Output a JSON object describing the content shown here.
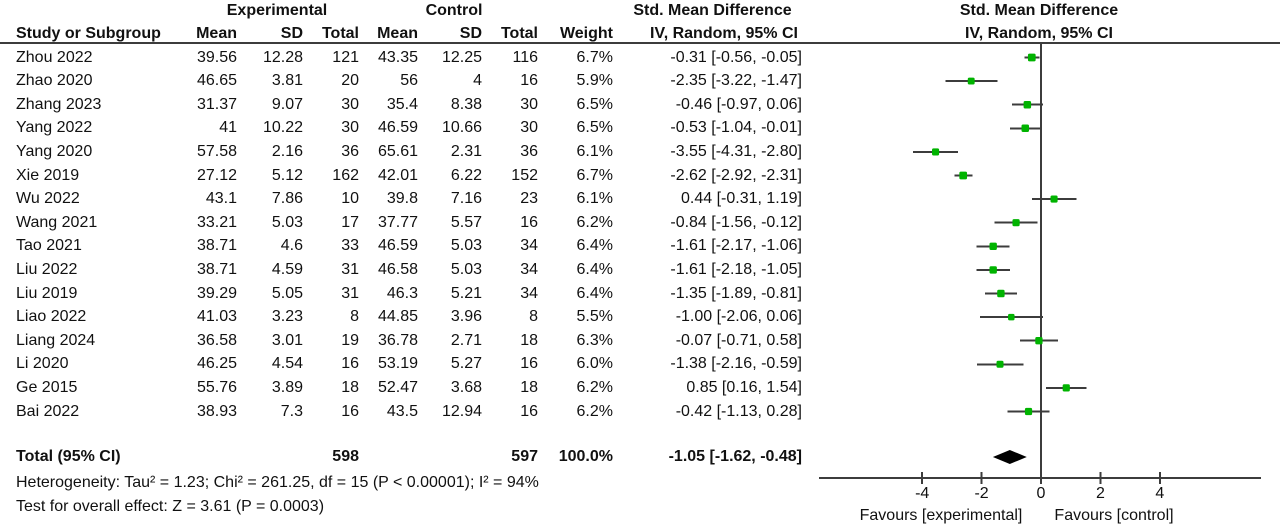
{
  "colors": {
    "marker_green": "#00b300",
    "line_dark": "#3c3c3c",
    "text": "#111111",
    "diamond": "#000000"
  },
  "group_headers": {
    "experimental": "Experimental",
    "control": "Control",
    "smd_text_col": "Std. Mean Difference",
    "smd_plot_col": "Std. Mean Difference"
  },
  "column_headers": {
    "study": "Study or Subgroup",
    "mean_exp": "Mean",
    "sd_exp": "SD",
    "total_exp": "Total",
    "mean_ctrl": "Mean",
    "sd_ctrl": "SD",
    "total_ctrl": "Total",
    "weight": "Weight",
    "iv_text_col": "IV, Random, 95% CI",
    "iv_plot_col": "IV, Random, 95% CI"
  },
  "chart_data": {
    "type": "forest",
    "effect_measure": "Std. Mean Difference (IV, Random, 95% CI)",
    "x_axis": {
      "ticks": [
        -4,
        -2,
        0,
        2,
        4
      ],
      "range": [
        -7.5,
        7.5
      ],
      "favours_left": "Favours [experimental]",
      "favours_right": "Favours [control]"
    },
    "studies": [
      {
        "name": "Zhou 2022",
        "exp_mean": "39.56",
        "exp_sd": "12.28",
        "exp_total": "121",
        "c_mean": "43.35",
        "c_sd": "12.25",
        "c_total": "116",
        "weight": "6.7%",
        "ci": "-0.31 [-0.56, -0.05]",
        "est": -0.31,
        "lo": -0.56,
        "hi": -0.05,
        "w": 6.7
      },
      {
        "name": "Zhao 2020",
        "exp_mean": "46.65",
        "exp_sd": "3.81",
        "exp_total": "20",
        "c_mean": "56",
        "c_sd": "4",
        "c_total": "16",
        "weight": "5.9%",
        "ci": "-2.35 [-3.22, -1.47]",
        "est": -2.35,
        "lo": -3.22,
        "hi": -1.47,
        "w": 5.9
      },
      {
        "name": "Zhang 2023",
        "exp_mean": "31.37",
        "exp_sd": "9.07",
        "exp_total": "30",
        "c_mean": "35.4",
        "c_sd": "8.38",
        "c_total": "30",
        "weight": "6.5%",
        "ci": "-0.46 [-0.97, 0.06]",
        "est": -0.46,
        "lo": -0.97,
        "hi": 0.06,
        "w": 6.5
      },
      {
        "name": "Yang 2022",
        "exp_mean": "41",
        "exp_sd": "10.22",
        "exp_total": "30",
        "c_mean": "46.59",
        "c_sd": "10.66",
        "c_total": "30",
        "weight": "6.5%",
        "ci": "-0.53 [-1.04, -0.01]",
        "est": -0.53,
        "lo": -1.04,
        "hi": -0.01,
        "w": 6.5
      },
      {
        "name": "Yang 2020",
        "exp_mean": "57.58",
        "exp_sd": "2.16",
        "exp_total": "36",
        "c_mean": "65.61",
        "c_sd": "2.31",
        "c_total": "36",
        "weight": "6.1%",
        "ci": "-3.55 [-4.31, -2.80]",
        "est": -3.55,
        "lo": -4.31,
        "hi": -2.8,
        "w": 6.1
      },
      {
        "name": "Xie 2019",
        "exp_mean": "27.12",
        "exp_sd": "5.12",
        "exp_total": "162",
        "c_mean": "42.01",
        "c_sd": "6.22",
        "c_total": "152",
        "weight": "6.7%",
        "ci": "-2.62 [-2.92, -2.31]",
        "est": -2.62,
        "lo": -2.92,
        "hi": -2.31,
        "w": 6.7
      },
      {
        "name": "Wu 2022",
        "exp_mean": "43.1",
        "exp_sd": "7.86",
        "exp_total": "10",
        "c_mean": "39.8",
        "c_sd": "7.16",
        "c_total": "23",
        "weight": "6.1%",
        "ci": "0.44 [-0.31, 1.19]",
        "est": 0.44,
        "lo": -0.31,
        "hi": 1.19,
        "w": 6.1
      },
      {
        "name": "Wang 2021",
        "exp_mean": "33.21",
        "exp_sd": "5.03",
        "exp_total": "17",
        "c_mean": "37.77",
        "c_sd": "5.57",
        "c_total": "16",
        "weight": "6.2%",
        "ci": "-0.84 [-1.56, -0.12]",
        "est": -0.84,
        "lo": -1.56,
        "hi": -0.12,
        "w": 6.2
      },
      {
        "name": "Tao 2021",
        "exp_mean": "38.71",
        "exp_sd": "4.6",
        "exp_total": "33",
        "c_mean": "46.59",
        "c_sd": "5.03",
        "c_total": "34",
        "weight": "6.4%",
        "ci": "-1.61 [-2.17, -1.06]",
        "est": -1.61,
        "lo": -2.17,
        "hi": -1.06,
        "w": 6.4
      },
      {
        "name": "Liu 2022",
        "exp_mean": "38.71",
        "exp_sd": "4.59",
        "exp_total": "31",
        "c_mean": "46.58",
        "c_sd": "5.03",
        "c_total": "34",
        "weight": "6.4%",
        "ci": "-1.61 [-2.18, -1.05]",
        "est": -1.61,
        "lo": -2.18,
        "hi": -1.05,
        "w": 6.4
      },
      {
        "name": "Liu 2019",
        "exp_mean": "39.29",
        "exp_sd": "5.05",
        "exp_total": "31",
        "c_mean": "46.3",
        "c_sd": "5.21",
        "c_total": "34",
        "weight": "6.4%",
        "ci": "-1.35 [-1.89, -0.81]",
        "est": -1.35,
        "lo": -1.89,
        "hi": -0.81,
        "w": 6.4
      },
      {
        "name": "Liao 2022",
        "exp_mean": "41.03",
        "exp_sd": "3.23",
        "exp_total": "8",
        "c_mean": "44.85",
        "c_sd": "3.96",
        "c_total": "8",
        "weight": "5.5%",
        "ci": "-1.00 [-2.06, 0.06]",
        "est": -1.0,
        "lo": -2.06,
        "hi": 0.06,
        "w": 5.5
      },
      {
        "name": "Liang 2024",
        "exp_mean": "36.58",
        "exp_sd": "3.01",
        "exp_total": "19",
        "c_mean": "36.78",
        "c_sd": "2.71",
        "c_total": "18",
        "weight": "6.3%",
        "ci": "-0.07 [-0.71, 0.58]",
        "est": -0.07,
        "lo": -0.71,
        "hi": 0.58,
        "w": 6.3
      },
      {
        "name": "Li 2020",
        "exp_mean": "46.25",
        "exp_sd": "4.54",
        "exp_total": "16",
        "c_mean": "53.19",
        "c_sd": "5.27",
        "c_total": "16",
        "weight": "6.0%",
        "ci": "-1.38 [-2.16, -0.59]",
        "est": -1.38,
        "lo": -2.16,
        "hi": -0.59,
        "w": 6.0
      },
      {
        "name": "Ge 2015",
        "exp_mean": "55.76",
        "exp_sd": "3.89",
        "exp_total": "18",
        "c_mean": "52.47",
        "c_sd": "3.68",
        "c_total": "18",
        "weight": "6.2%",
        "ci": "0.85 [0.16, 1.54]",
        "est": 0.85,
        "lo": 0.16,
        "hi": 1.54,
        "w": 6.2
      },
      {
        "name": "Bai 2022",
        "exp_mean": "38.93",
        "exp_sd": "7.3",
        "exp_total": "16",
        "c_mean": "43.5",
        "c_sd": "12.94",
        "c_total": "16",
        "weight": "6.2%",
        "ci": "-0.42 [-1.13, 0.28]",
        "est": -0.42,
        "lo": -1.13,
        "hi": 0.28,
        "w": 6.2
      }
    ],
    "total": {
      "label": "Total (95% CI)",
      "exp_total": "598",
      "ctrl_total": "597",
      "weight": "100.0%",
      "ci": "-1.05 [-1.62, -0.48]",
      "est": -1.05,
      "lo": -1.62,
      "hi": -0.48
    },
    "heterogeneity": "Heterogeneity: Tau² = 1.23; Chi² = 261.25, df = 15 (P < 0.00001); I² = 94%",
    "overall_effect": "Test for overall effect: Z = 3.61 (P = 0.0003)"
  }
}
